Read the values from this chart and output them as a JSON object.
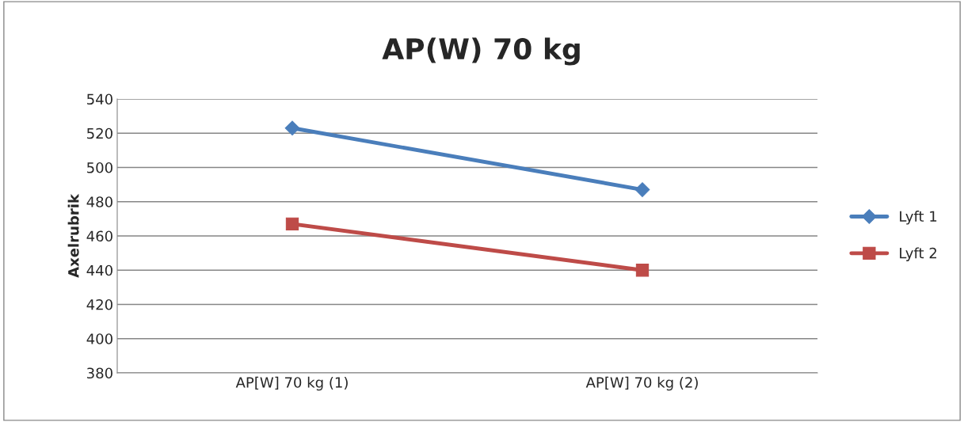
{
  "chart_data": {
    "type": "line",
    "title": "AP(W) 70 kg",
    "ylabel": "Axelrubrik",
    "categories": [
      "AP[W] 70 kg (1)",
      "AP[W] 70 kg (2)"
    ],
    "series": [
      {
        "name": "Lyft 1",
        "color": "#4a7ebb",
        "values": [
          523,
          487
        ],
        "marker": "diamond"
      },
      {
        "name": "Lyft 2",
        "color": "#be4b48",
        "values": [
          467,
          440
        ],
        "marker": "square"
      }
    ],
    "ylim": [
      380,
      540
    ],
    "yticks": [
      380,
      400,
      420,
      440,
      460,
      480,
      500,
      520,
      540
    ],
    "grid": "y",
    "legend": "right",
    "line_style": "solid"
  }
}
